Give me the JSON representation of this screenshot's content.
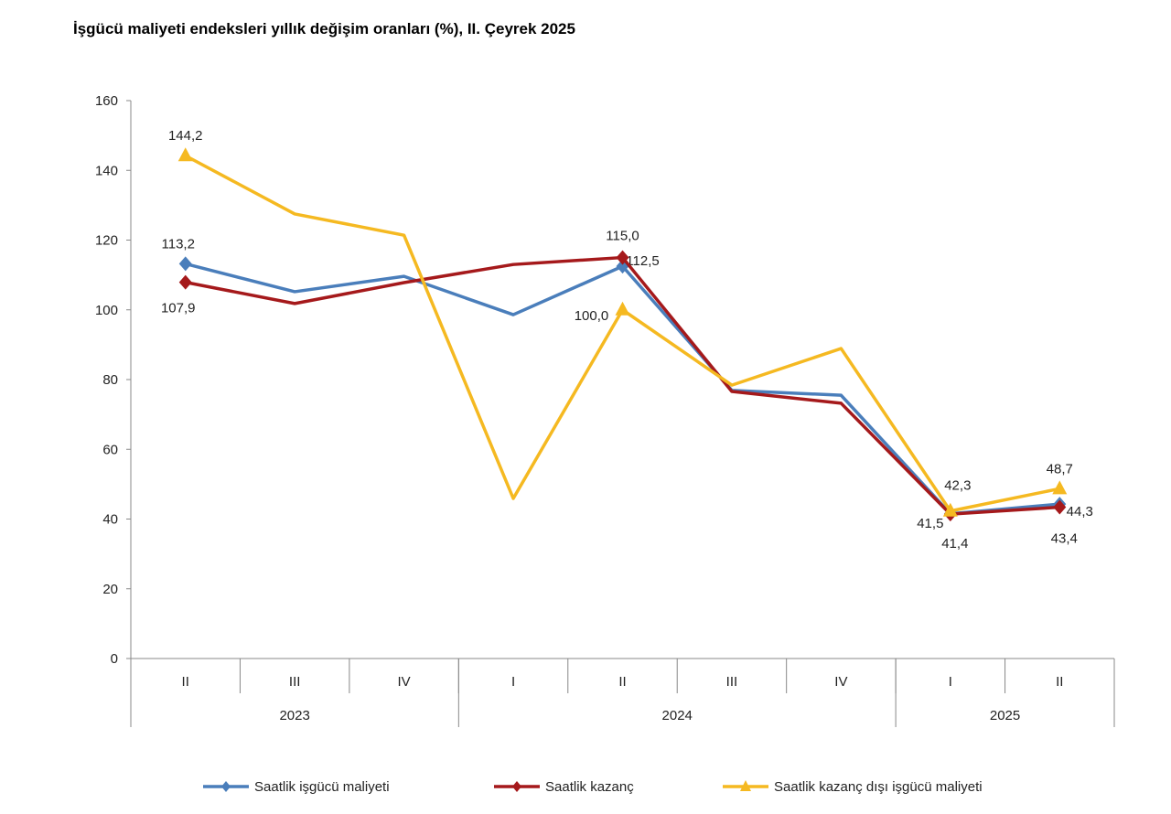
{
  "chart_data": {
    "type": "line",
    "title": "İşgücü maliyeti endeksleri yıllık değişim oranları (%), II. Çeyrek 2025",
    "categories": [
      "II",
      "III",
      "IV",
      "I",
      "II",
      "III",
      "IV",
      "I",
      "II"
    ],
    "years": [
      {
        "label": "2023",
        "span": 3
      },
      {
        "label": "2024",
        "span": 4
      },
      {
        "label": "2025",
        "span": 2
      }
    ],
    "ylim": [
      0,
      160
    ],
    "yticks": [
      0,
      20,
      40,
      60,
      80,
      100,
      120,
      140,
      160
    ],
    "grid": false,
    "legend": "bottom",
    "series": [
      {
        "name": "Saatlik işgücü maliyeti",
        "color": "#4a7ebb",
        "marker": "diamond",
        "values": [
          113.2,
          105.2,
          109.6,
          98.6,
          112.5,
          76.9,
          75.5,
          41.5,
          44.3
        ],
        "labels": {
          "0": "113,2",
          "4": "112,5",
          "7": "41,5",
          "8": "44,3"
        }
      },
      {
        "name": "Saatlik kazanç",
        "color": "#a5191b",
        "marker": "diamond",
        "values": [
          107.9,
          101.8,
          107.8,
          113.0,
          115.0,
          76.6,
          73.2,
          41.4,
          43.4
        ],
        "labels": {
          "0": "107,9",
          "4": "115,0",
          "7": "41,4",
          "8": "43,4"
        }
      },
      {
        "name": "Saatlik kazanç dışı işgücü maliyeti",
        "color": "#f5b921",
        "marker": "triangle",
        "values": [
          144.2,
          127.5,
          121.4,
          45.9,
          100.0,
          78.4,
          88.9,
          42.3,
          48.7
        ],
        "labels": {
          "0": "144,2",
          "4": "100,0",
          "7": "42,3",
          "8": "48,7"
        }
      }
    ]
  }
}
